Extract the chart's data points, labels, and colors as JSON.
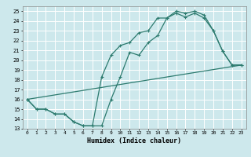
{
  "xlabel": "Humidex (Indice chaleur)",
  "xlim": [
    -0.5,
    23.5
  ],
  "ylim": [
    13,
    25.5
  ],
  "yticks": [
    13,
    14,
    15,
    16,
    17,
    18,
    19,
    20,
    21,
    22,
    23,
    24,
    25
  ],
  "xticks": [
    0,
    1,
    2,
    3,
    4,
    5,
    6,
    7,
    8,
    9,
    10,
    11,
    12,
    13,
    14,
    15,
    16,
    17,
    18,
    19,
    20,
    21,
    22,
    23
  ],
  "bg_color": "#cde8ec",
  "grid_color": "#ffffff",
  "line_color": "#2d7b6f",
  "line1_x": [
    0,
    1,
    2,
    3,
    4,
    5,
    6,
    7,
    8,
    9,
    10,
    11,
    12,
    13,
    14,
    15,
    16,
    17,
    18,
    19,
    20,
    21,
    22,
    23
  ],
  "line1_y": [
    16,
    15,
    15,
    14.5,
    14.5,
    13.7,
    13.3,
    13.3,
    13.3,
    16.0,
    18.3,
    20.8,
    20.5,
    21.8,
    22.5,
    24.3,
    25.0,
    24.8,
    25.0,
    24.6,
    23.0,
    20.9,
    19.5,
    19.5
  ],
  "line2_x": [
    0,
    1,
    2,
    3,
    4,
    5,
    6,
    7,
    8,
    9,
    10,
    11,
    12,
    13,
    14,
    15,
    16,
    17,
    18,
    19,
    20,
    21,
    22,
    23
  ],
  "line2_y": [
    16,
    15,
    15,
    14.5,
    14.5,
    13.7,
    13.3,
    13.3,
    18.3,
    20.5,
    21.5,
    21.8,
    22.8,
    23.0,
    24.3,
    24.3,
    24.8,
    24.4,
    24.8,
    24.3,
    23.0,
    20.9,
    19.5,
    19.5
  ],
  "line3_x": [
    0,
    23
  ],
  "line3_y": [
    16,
    19.5
  ]
}
